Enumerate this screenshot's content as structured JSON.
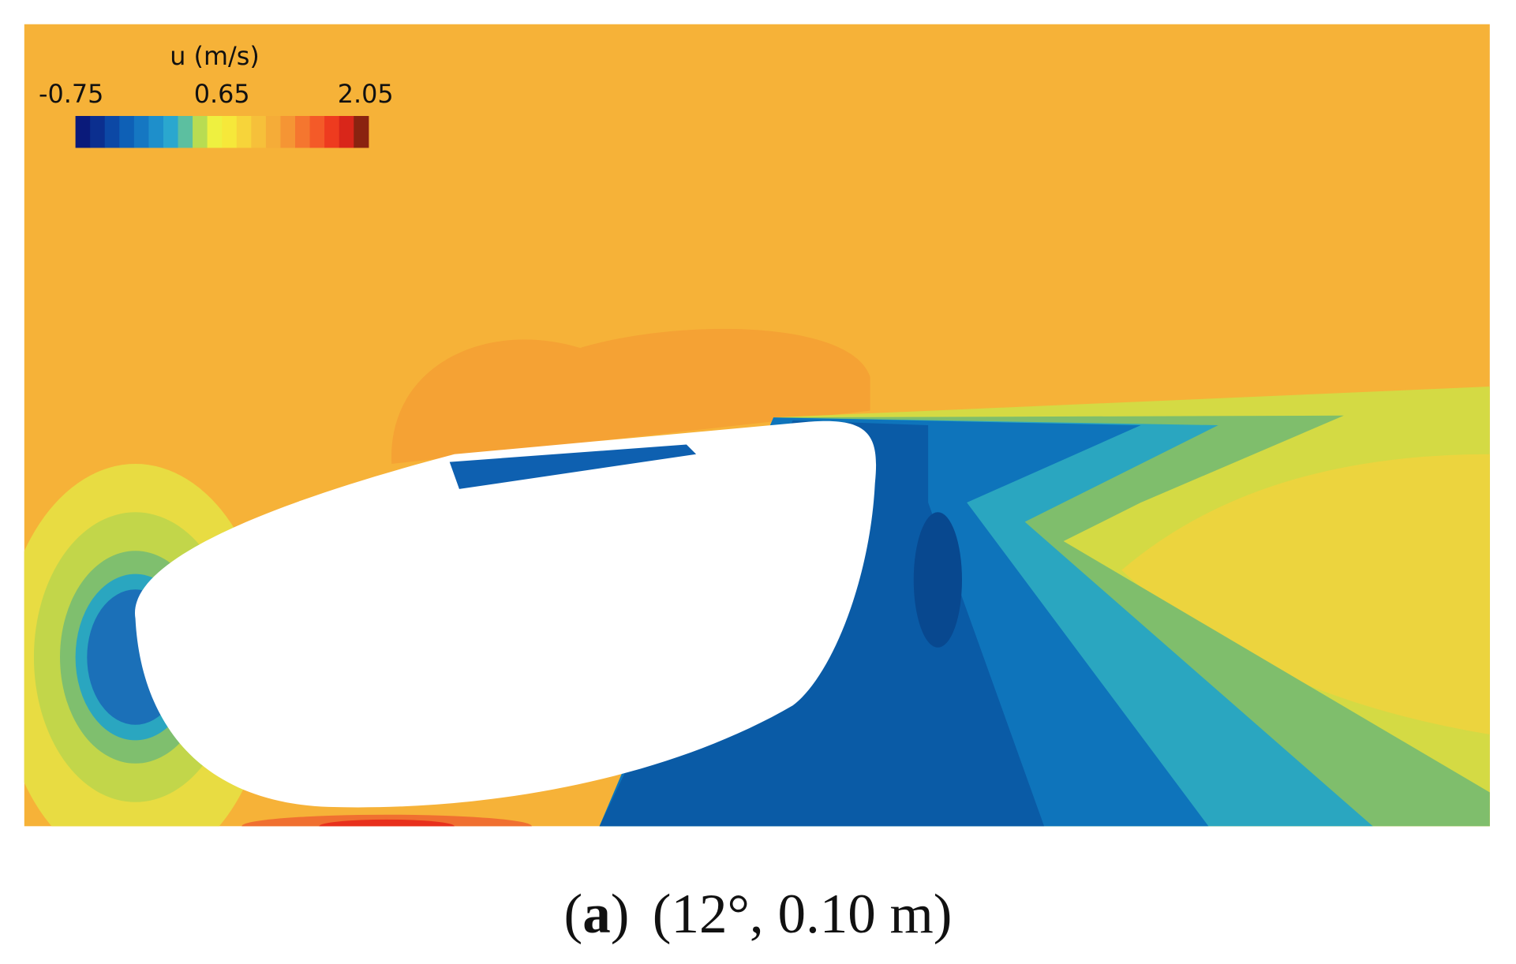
{
  "chart_data": {
    "type": "contour",
    "colorbar": {
      "title": "u (m/s)",
      "range": [
        -0.75,
        2.05
      ],
      "ticks": [
        -0.75,
        0.65,
        2.05
      ],
      "colors": [
        "#0a1a7a",
        "#0b2f8f",
        "#0c48a5",
        "#0e60b6",
        "#1577c2",
        "#1e8fcb",
        "#2aa7cf",
        "#5cbfa0",
        "#b8dc52",
        "#eef040",
        "#f6e83a",
        "#f7d43a",
        "#f6c03a",
        "#f5ac38",
        "#f59534",
        "#f5762f",
        "#f45a28",
        "#ee3b1f",
        "#d9261a",
        "#8a2310"
      ]
    },
    "caption": {
      "open": "(",
      "panel": "a",
      "close": ")",
      "text": "(12°, 0.10 m)"
    }
  }
}
